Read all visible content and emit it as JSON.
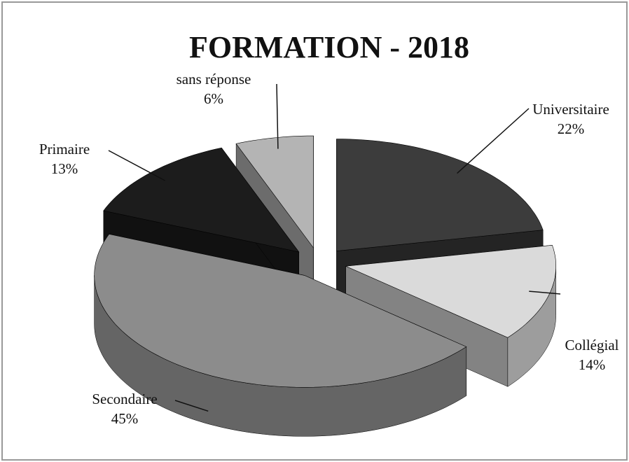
{
  "chart_data": {
    "type": "pie",
    "title": "FORMATION - 2018",
    "categories": [
      "Universitaire",
      "Collégial",
      "Secondaire",
      "Primaire",
      "sans réponse"
    ],
    "values": [
      22,
      14,
      45,
      13,
      6
    ],
    "value_labels": [
      "22%",
      "14%",
      "45%",
      "13%",
      "6%"
    ],
    "colors": [
      "#3c3c3c",
      "#dadada",
      "#8c8c8c",
      "#1c1c1c",
      "#b4b4b4"
    ]
  }
}
